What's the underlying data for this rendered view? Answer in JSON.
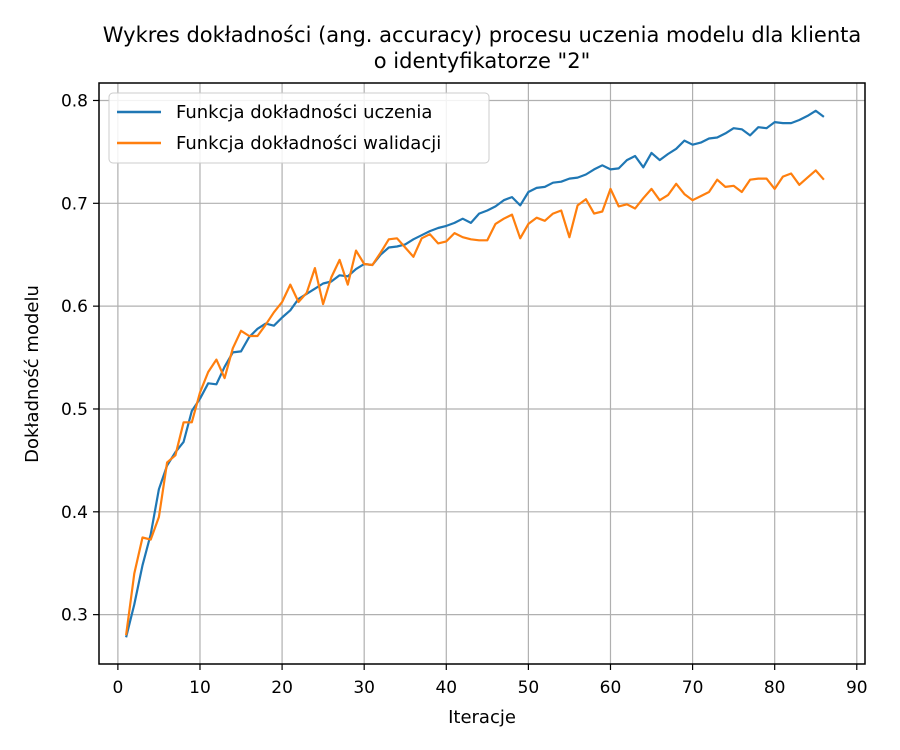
{
  "chart_data": {
    "type": "line",
    "title": "Wykres dokładności (ang. accuracy) procesu uczenia modelu dla klienta",
    "subtitle": "o identyfikatorze \"2\"",
    "xlabel": "Iteracje",
    "ylabel": "Dokładność modelu",
    "xlim": [
      -2.3,
      91
    ],
    "ylim": [
      0.252,
      0.817
    ],
    "xticks": [
      0,
      10,
      20,
      30,
      40,
      50,
      60,
      70,
      80,
      90
    ],
    "yticks": [
      0.3,
      0.4,
      0.5,
      0.6,
      0.7,
      0.8
    ],
    "grid": true,
    "legend_position": "top-left",
    "x": [
      1,
      2,
      3,
      4,
      5,
      6,
      7,
      8,
      9,
      10,
      11,
      12,
      13,
      14,
      15,
      16,
      17,
      18,
      19,
      20,
      21,
      22,
      23,
      24,
      25,
      26,
      27,
      28,
      29,
      30,
      31,
      32,
      33,
      34,
      35,
      36,
      37,
      38,
      39,
      40,
      41,
      42,
      43,
      44,
      45,
      46,
      47,
      48,
      49,
      50,
      51,
      52,
      53,
      54,
      55,
      56,
      57,
      58,
      59,
      60,
      61,
      62,
      63,
      64,
      65,
      66,
      67,
      68,
      69,
      70,
      71,
      72,
      73,
      74,
      75,
      76,
      77,
      78,
      79,
      80,
      81,
      82,
      83,
      84,
      85,
      86
    ],
    "series": [
      {
        "name": "Funkcja dokładności uczenia",
        "color": "#1f77b4",
        "values": [
          0.278,
          0.31,
          0.348,
          0.378,
          0.422,
          0.445,
          0.458,
          0.468,
          0.498,
          0.51,
          0.525,
          0.524,
          0.541,
          0.555,
          0.556,
          0.57,
          0.578,
          0.583,
          0.581,
          0.589,
          0.596,
          0.607,
          0.612,
          0.617,
          0.622,
          0.624,
          0.63,
          0.629,
          0.636,
          0.641,
          0.64,
          0.65,
          0.657,
          0.658,
          0.66,
          0.665,
          0.669,
          0.673,
          0.676,
          0.678,
          0.681,
          0.685,
          0.681,
          0.69,
          0.693,
          0.697,
          0.703,
          0.706,
          0.698,
          0.711,
          0.715,
          0.716,
          0.72,
          0.721,
          0.724,
          0.725,
          0.728,
          0.733,
          0.737,
          0.733,
          0.734,
          0.742,
          0.746,
          0.735,
          0.749,
          0.742,
          0.748,
          0.753,
          0.761,
          0.757,
          0.759,
          0.763,
          0.764,
          0.768,
          0.773,
          0.772,
          0.766,
          0.774,
          0.773,
          0.779,
          0.778,
          0.778,
          0.781,
          0.785,
          0.79,
          0.784
        ]
      },
      {
        "name": "Funkcja dokładności walidacji",
        "color": "#ff7f0e",
        "values": [
          0.28,
          0.34,
          0.375,
          0.373,
          0.395,
          0.448,
          0.455,
          0.487,
          0.487,
          0.516,
          0.536,
          0.548,
          0.53,
          0.559,
          0.576,
          0.571,
          0.571,
          0.582,
          0.594,
          0.604,
          0.621,
          0.604,
          0.613,
          0.637,
          0.602,
          0.628,
          0.645,
          0.621,
          0.654,
          0.641,
          0.64,
          0.652,
          0.665,
          0.666,
          0.657,
          0.648,
          0.666,
          0.67,
          0.661,
          0.663,
          0.671,
          0.667,
          0.665,
          0.664,
          0.664,
          0.68,
          0.685,
          0.689,
          0.666,
          0.68,
          0.686,
          0.683,
          0.69,
          0.693,
          0.667,
          0.698,
          0.704,
          0.69,
          0.692,
          0.714,
          0.697,
          0.699,
          0.695,
          0.705,
          0.714,
          0.703,
          0.708,
          0.719,
          0.709,
          0.703,
          0.707,
          0.711,
          0.723,
          0.716,
          0.717,
          0.711,
          0.723,
          0.724,
          0.724,
          0.714,
          0.726,
          0.729,
          0.718,
          0.725,
          0.732,
          0.723
        ]
      }
    ]
  }
}
